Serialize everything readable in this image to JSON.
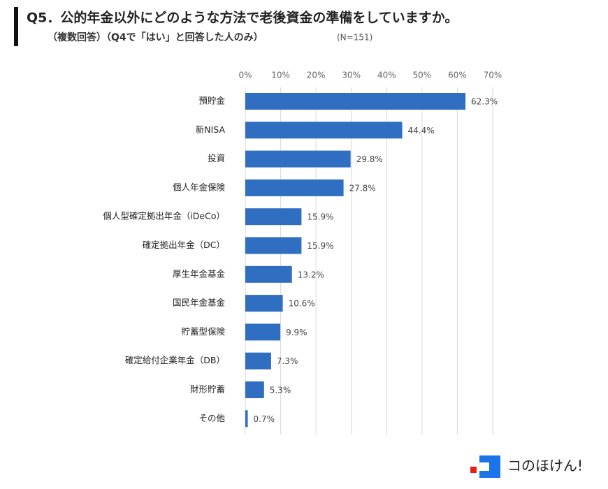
{
  "chart_data": {
    "type": "hbar",
    "title": "Q5．公的年金以外にどのような方法で老後資金の準備をしていますか。",
    "subtitle": "（複数回答）（Q4で「はい」と回答した人のみ）",
    "note": "(N=151)",
    "categories": [
      "預貯金",
      "新NISA",
      "投資",
      "個人年金保険",
      "個人型確定拠出年金（iDeCo）",
      "確定拠出年金（DC）",
      "厚生年金基金",
      "国民年金基金",
      "貯蓄型保険",
      "確定給付企業年金（DB）",
      "財形貯蓄",
      "その他"
    ],
    "values": [
      62.3,
      44.4,
      29.8,
      27.8,
      15.9,
      15.9,
      13.2,
      10.6,
      9.9,
      7.3,
      5.3,
      0.7
    ],
    "value_labels": [
      "62.3%",
      "44.4%",
      "29.8%",
      "27.8%",
      "15.9%",
      "15.9%",
      "13.2%",
      "10.6%",
      "9.9%",
      "7.3%",
      "5.3%",
      "0.7%"
    ],
    "color": "#2f6ec0",
    "xlim": [
      0,
      70
    ],
    "xticks": [
      {
        "value": 0,
        "label": "0%"
      },
      {
        "value": 10,
        "label": "10%"
      },
      {
        "value": 20,
        "label": "20%"
      },
      {
        "value": 30,
        "label": "30%"
      },
      {
        "value": 40,
        "label": "40%"
      },
      {
        "value": 50,
        "label": "50%"
      },
      {
        "value": 60,
        "label": "60%"
      },
      {
        "value": 70,
        "label": "70%"
      }
    ],
    "grid": true
  },
  "logo": "コのほけん!"
}
